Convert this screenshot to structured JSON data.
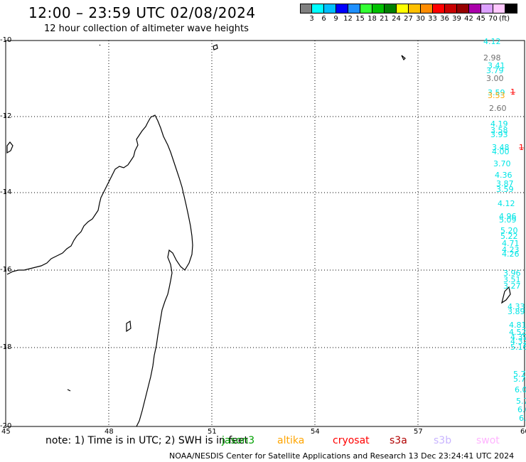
{
  "header": {
    "title": "12:00 – 23:59 UTC 02/08/2024",
    "subtitle": "12 hour collection of altimeter wave heights"
  },
  "legend": {
    "colors": [
      "#808080",
      "#00ffff",
      "#00bfff",
      "#0000ff",
      "#1e90ff",
      "#33ff33",
      "#00c000",
      "#008000",
      "#ffff00",
      "#ffc000",
      "#ff8c00",
      "#ff0000",
      "#c80000",
      "#960000",
      "#aa00aa",
      "#dca0ff",
      "#ffc8ff",
      "#000000"
    ],
    "labels": [
      "3",
      "6",
      "9",
      "12",
      "15",
      "18",
      "21",
      "24",
      "27",
      "30",
      "33",
      "36",
      "39",
      "42",
      "45",
      "70"
    ],
    "unit": "(ft)"
  },
  "map": {
    "lat_labels": [
      "-10",
      "-12",
      "-14",
      "-16",
      "-18",
      "-20"
    ],
    "lon_labels": [
      "45",
      "48",
      "51",
      "54",
      "57",
      "60"
    ]
  },
  "wave_heights": [
    {
      "text": "4.12",
      "color": "#00e5e5"
    },
    {
      "text": "2.98",
      "color": "#707070"
    },
    {
      "text": "3.41",
      "color": "#00e5e5"
    },
    {
      "text": "3.79",
      "color": "#00e5e5"
    },
    {
      "text": "3.00",
      "color": "#707070"
    },
    {
      "text": "3.59",
      "color": "#00e5e5"
    },
    {
      "text": "1̶",
      "color": "#ff0000"
    },
    {
      "text": "3.53",
      "color": "#ffa500"
    },
    {
      "text": "2.60",
      "color": "#707070"
    },
    {
      "text": "4.19",
      "color": "#00e5e5"
    },
    {
      "text": "3.58",
      "color": "#00e5e5"
    },
    {
      "text": "3.93",
      "color": "#00e5e5"
    },
    {
      "text": "3.48",
      "color": "#00e5e5"
    },
    {
      "text": "1̶",
      "color": "#ff0000"
    },
    {
      "text": "4.00",
      "color": "#00e5e5"
    },
    {
      "text": "3.70",
      "color": "#00e5e5"
    },
    {
      "text": "1̶",
      "color": "#ff0000"
    },
    {
      "text": "4.36",
      "color": "#00e5e5"
    },
    {
      "text": "3.87",
      "color": "#00e5e5"
    },
    {
      "text": "3.59",
      "color": "#00e5e5"
    },
    {
      "text": "4.12",
      "color": "#00e5e5"
    },
    {
      "text": "4.96",
      "color": "#00e5e5"
    },
    {
      "text": "5.09",
      "color": "#00e5e5"
    },
    {
      "text": "5.20",
      "color": "#00e5e5"
    },
    {
      "text": "5.22",
      "color": "#00e5e5"
    },
    {
      "text": "4.71",
      "color": "#00e5e5"
    },
    {
      "text": "4.23",
      "color": "#00e5e5"
    },
    {
      "text": "4.26",
      "color": "#00e5e5"
    },
    {
      "text": "3.96",
      "color": "#00e5e5"
    },
    {
      "text": "3.51",
      "color": "#00e5e5"
    },
    {
      "text": "3.27",
      "color": "#00e5e5"
    },
    {
      "text": "4.33",
      "color": "#00e5e5"
    },
    {
      "text": "3.89",
      "color": "#00e5e5"
    },
    {
      "text": "4.81",
      "color": "#00e5e5"
    },
    {
      "text": "4.52",
      "color": "#00e5e5"
    },
    {
      "text": "4.39",
      "color": "#00e5e5"
    },
    {
      "text": "4.32",
      "color": "#00e5e5"
    },
    {
      "text": "5.16",
      "color": "#00e5e5"
    },
    {
      "text": "5.7",
      "color": "#00e5e5"
    },
    {
      "text": "5.7",
      "color": "#00e5e5"
    },
    {
      "text": "6.0",
      "color": "#00e5e5"
    },
    {
      "text": "5.7",
      "color": "#00e5e5"
    },
    {
      "text": "6.0",
      "color": "#00e5e5"
    },
    {
      "text": "6.",
      "color": "#00e5e5"
    },
    {
      "text": "5.",
      "color": "#00e5e5"
    }
  ],
  "footer": {
    "note": "note:  1) Time is in UTC; 2) SWH is in feet",
    "satellites": [
      {
        "name": "jason3",
        "color": "#00a000"
      },
      {
        "name": "altika",
        "color": "#ffa500"
      },
      {
        "name": "cryosat",
        "color": "#ff0000"
      },
      {
        "name": "s3a",
        "color": "#b00000"
      },
      {
        "name": "s3b",
        "color": "#c8b4ff"
      },
      {
        "name": "swot",
        "color": "#ffb4ff"
      }
    ],
    "credit": "NOAA/NESDIS Center for Satellite Applications and Research    13 Dec 23:24:41 UTC 2024"
  }
}
